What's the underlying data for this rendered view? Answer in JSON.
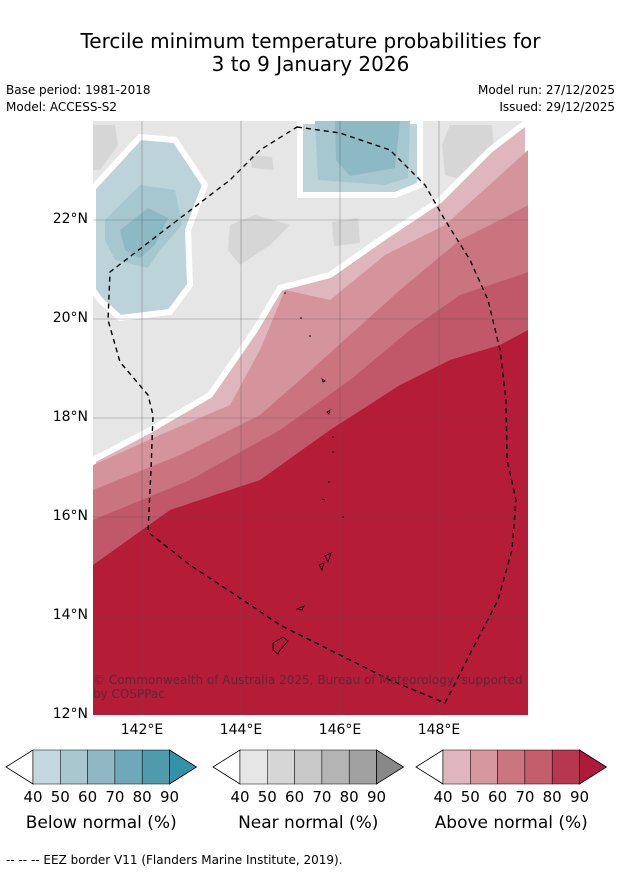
{
  "title": {
    "line1": "Tercile minimum temperature probabilities for",
    "line2": "3 to 9 January 2026"
  },
  "meta": {
    "base_period": "Base period: 1981-2018",
    "model": "Model: ACCESS-S2",
    "model_run": "Model run: 27/12/2025",
    "issued": "Issued: 29/12/2025"
  },
  "map": {
    "lat_labels": [
      "22°N",
      "20°N",
      "18°N",
      "16°N",
      "14°N",
      "12°N"
    ],
    "lon_labels": [
      "142°E",
      "144°E",
      "146°E",
      "148°E"
    ],
    "copyright": "© Commonwealth of Australia 2025, Bureau of Meteorology, supported by COSPPac",
    "colors": {
      "near_bg": "#e6e6e6",
      "above_40": "#dfb6be",
      "above_50": "#d5939c",
      "above_60": "#ca7480",
      "above_70": "#c0586a",
      "above_80": "#b41c38",
      "below_40": "#bcd3da",
      "below_50": "#a6c7d0",
      "below_60": "#8db9c5",
      "near_50": "#d6d6d6"
    }
  },
  "colorbars": [
    {
      "title": "Below normal (%)",
      "ticks": [
        "40",
        "50",
        "60",
        "70",
        "80",
        "90"
      ],
      "colors": [
        "#c3d8de",
        "#a9c7cf",
        "#8fb8c4",
        "#6fa9b9",
        "#4d9bac",
        "#3391a8"
      ]
    },
    {
      "title": "Near normal (%)",
      "ticks": [
        "40",
        "50",
        "60",
        "70",
        "80",
        "90"
      ],
      "colors": [
        "#e6e6e6",
        "#d6d6d6",
        "#c8c8c8",
        "#b4b4b4",
        "#a0a0a0",
        "#888888"
      ]
    },
    {
      "title": "Above normal (%)",
      "ticks": [
        "40",
        "50",
        "60",
        "70",
        "80",
        "90"
      ],
      "colors": [
        "#dfb6be",
        "#d6969e",
        "#cc7480",
        "#c45d6c",
        "#b73650",
        "#ae1a3a"
      ]
    }
  ],
  "footnote": "-- -- -- EEZ border V11 (Flanders Marine Institute, 2019)."
}
